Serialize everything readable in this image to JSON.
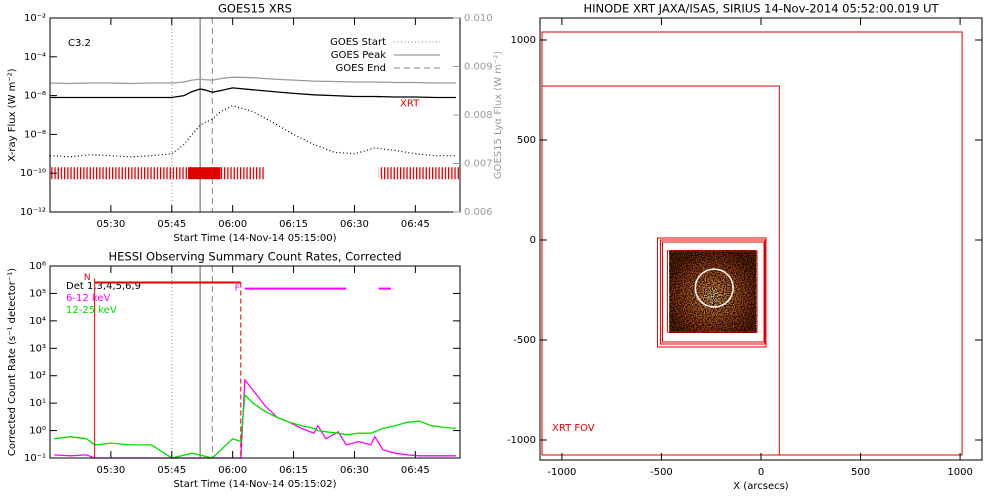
{
  "chart_data": [
    {
      "type": "line",
      "title": "GOES15 XRS",
      "xlabel": "Start Time (14-Nov-14 05:15:00)",
      "ylabel": "X-ray Flux (W m⁻²)",
      "y2label": "GOES15 Lyα Flux (W m⁻²)",
      "log": true,
      "xlim": [
        "05:15",
        "06:56"
      ],
      "xticks": [
        "05:30",
        "05:45",
        "06:00",
        "06:15",
        "06:30",
        "06:45"
      ],
      "ylim": [
        1e-12,
        0.01
      ],
      "yticks": [
        {
          "value": 1e-12,
          "label": "10⁻¹²"
        },
        {
          "value": 1e-10,
          "label": "10⁻¹⁰"
        },
        {
          "value": 1e-08,
          "label": "10⁻⁸"
        },
        {
          "value": 1e-06,
          "label": "10⁻⁶"
        },
        {
          "value": 0.0001,
          "label": "10⁻⁴"
        },
        {
          "value": 0.01,
          "label": "10⁻²"
        }
      ],
      "y2lim": [
        0.006,
        0.01
      ],
      "y2ticks": [
        0.006,
        0.007,
        0.008,
        0.009,
        {
          "value": 0.01,
          "label": "0.010"
        }
      ],
      "flare_class": "C3.2",
      "x": [
        "05:15",
        "05:20",
        "05:25",
        "05:30",
        "05:35",
        "05:40",
        "05:45",
        "05:48",
        "05:50",
        "05:52",
        "05:53",
        "05:55",
        "05:57",
        "06:00",
        "06:05",
        "06:10",
        "06:15",
        "06:20",
        "06:25",
        "06:30",
        "06:35",
        "06:40",
        "06:45",
        "06:50",
        "06:55"
      ],
      "series": [
        {
          "color": "#000000",
          "style": "solid",
          "values": [
            8e-07,
            8e-07,
            8e-07,
            8e-07,
            8e-07,
            8e-07,
            8e-07,
            1e-06,
            1.6e-06,
            2.2e-06,
            2e-06,
            1.5e-06,
            1.8e-06,
            2.5e-06,
            2e-06,
            1.6e-06,
            1.3e-06,
            1.1e-06,
            1e-06,
            9e-07,
            9e-07,
            8.5e-07,
            8.5e-07,
            8e-07,
            8e-07
          ]
        },
        {
          "color": "#000000",
          "style": "dotted",
          "values": [
            8e-10,
            7e-10,
            9e-10,
            8e-10,
            7e-10,
            8e-10,
            1e-09,
            3e-09,
            1e-08,
            3e-08,
            4e-08,
            6e-08,
            1.5e-07,
            3e-07,
            1.5e-07,
            4e-08,
            1e-08,
            3e-09,
            1.2e-09,
            1e-09,
            2e-09,
            1.5e-09,
            1e-09,
            8e-10,
            8e-10
          ]
        },
        {
          "color": "#9a9a9a",
          "style": "solid",
          "axis": "y2",
          "values": [
            0.00866,
            0.00865,
            0.00866,
            0.00866,
            0.00865,
            0.00866,
            0.00866,
            0.00868,
            0.00872,
            0.00874,
            0.00873,
            0.00872,
            0.00875,
            0.00878,
            0.00877,
            0.00874,
            0.00872,
            0.0087,
            0.00869,
            0.00868,
            0.00868,
            0.00867,
            0.00867,
            0.00866,
            0.00866
          ]
        }
      ],
      "markers": [
        {
          "name": "GOES Start",
          "x": "05:45",
          "style": "dotted"
        },
        {
          "name": "GOES Peak",
          "x": "05:52",
          "style": "solid"
        },
        {
          "name": "GOES End",
          "x": "05:55",
          "style": "dashed"
        }
      ],
      "observations": {
        "name": "XRT",
        "color": "#e00000",
        "level": 1e-10,
        "intervals": [
          {
            "start": "05:15",
            "end": "05:49",
            "fill": "hatched"
          },
          {
            "start": "05:49",
            "end": "05:57",
            "fill": "solid"
          },
          {
            "start": "05:57",
            "end": "06:08",
            "fill": "hatched"
          },
          {
            "start": "06:36",
            "end": "06:56",
            "fill": "hatched"
          }
        ]
      }
    },
    {
      "type": "line",
      "title": "HESSI Observing Summary Count Rates, Corrected",
      "xlabel": "Start Time (14-Nov-14 05:15:02)",
      "ylabel": "Corrected Count Rate (s⁻¹ detector⁻¹)",
      "log": true,
      "xlim": [
        "05:15",
        "06:56"
      ],
      "xticks": [
        "05:30",
        "05:45",
        "06:00",
        "06:15",
        "06:30",
        "06:45"
      ],
      "ylim": [
        0.1,
        1000000
      ],
      "yticks": [
        {
          "value": 0.1,
          "label": "10⁻¹"
        },
        {
          "value": 1,
          "label": "10⁰"
        },
        {
          "value": 10,
          "label": "10¹"
        },
        {
          "value": 100,
          "label": "10²"
        },
        {
          "value": 1000,
          "label": "10³"
        },
        {
          "value": 10000,
          "label": "10⁴"
        },
        {
          "value": 100000,
          "label": "10⁵"
        },
        {
          "value": 1000000,
          "label": "10⁶"
        }
      ],
      "legend_title": "Det 1,3,4,5,6,9",
      "x": [
        "05:16",
        "05:20",
        "05:24",
        "05:26",
        "05:30",
        "05:35",
        "05:40",
        "05:45",
        "05:50",
        "05:55",
        "06:00",
        "06:02",
        "06:03",
        "06:05",
        "06:08",
        "06:11",
        "06:14",
        "06:17",
        "06:20",
        "06:21",
        "06:23",
        "06:26",
        "06:28",
        "06:31",
        "06:34",
        "06:35",
        "06:37",
        "06:40",
        "06:43",
        "06:46",
        "06:49",
        "06:52",
        "06:55"
      ],
      "series": [
        {
          "name": "6-12 keV",
          "color": "#ff00ff",
          "values": [
            0.13,
            0.12,
            0.13,
            0.1,
            0.1,
            0.1,
            0.1,
            0.1,
            0.1,
            0.1,
            0.1,
            0.1,
            70,
            30,
            8,
            3,
            2,
            1.2,
            0.8,
            1.5,
            0.5,
            0.9,
            0.3,
            0.4,
            0.3,
            0.6,
            0.2,
            0.15,
            0.13,
            0.12,
            0.12,
            0.12,
            0.12
          ]
        },
        {
          "name": "12-25 keV",
          "color": "#00e000",
          "values": [
            0.5,
            0.6,
            0.5,
            0.3,
            0.35,
            0.3,
            0.3,
            0.1,
            0.15,
            0.1,
            0.5,
            0.4,
            20,
            10,
            5,
            3,
            2,
            1.5,
            1.2,
            1,
            0.9,
            0.8,
            0.7,
            0.8,
            0.8,
            0.9,
            1.2,
            1.5,
            2,
            2.2,
            1.5,
            1.3,
            1.2
          ]
        }
      ],
      "markers": [
        {
          "x": "05:45",
          "style": "dotted"
        },
        {
          "x": "05:52",
          "style": "solid"
        },
        {
          "x": "05:55",
          "style": "dashed"
        }
      ],
      "night": {
        "label": "N",
        "start": "05:26",
        "end": "06:02",
        "level": 250000,
        "color": "#e00000"
      },
      "flare": {
        "label": "F",
        "level": 150000,
        "color": "#ff00ff",
        "intervals": [
          {
            "start": "06:03",
            "end": "06:28"
          },
          {
            "start": "06:36",
            "end": "06:39"
          }
        ]
      }
    },
    {
      "type": "image",
      "title": "HINODE XRT JAXA/ISAS, SIRIUS 14-Nov-2014 05:52:00.019 UT",
      "xlabel": "X (arcsecs)",
      "xlim": [
        -1110,
        1110
      ],
      "ylim": [
        -1100,
        1110
      ],
      "xticks": [
        -1000,
        -500,
        0,
        500,
        1000
      ],
      "yticks": [
        -1000,
        -500,
        0,
        500,
        1000
      ],
      "fov_label": "XRT FOV",
      "color": "#e00000",
      "boxes": [
        {
          "x": [
            -1100,
            1010
          ],
          "y": [
            -1075,
            1040
          ]
        },
        {
          "x": [
            -1100,
            92
          ],
          "y": [
            -1075,
            770
          ]
        },
        {
          "x": [
            -520,
            25
          ],
          "y": [
            -535,
            10
          ]
        },
        {
          "x": [
            -505,
            20
          ],
          "y": [
            -520,
            0
          ]
        },
        {
          "x": [
            -495,
            15
          ],
          "y": [
            -510,
            -10
          ]
        },
        {
          "x": [
            -470,
            -20
          ],
          "y": [
            -460,
            -55
          ]
        }
      ],
      "image": {
        "x": [
          -460,
          -25
        ],
        "y": [
          -465,
          -50
        ]
      },
      "circle": {
        "x": -235,
        "y": -240,
        "r": 95
      }
    }
  ]
}
